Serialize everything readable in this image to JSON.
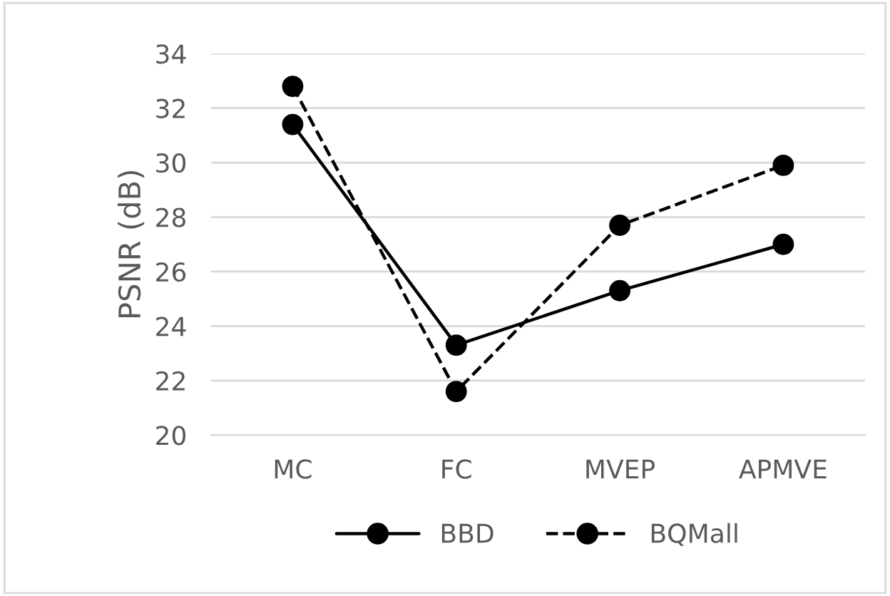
{
  "chart_data": {
    "type": "line",
    "ylabel": "PSNR (dB)",
    "categories": [
      "MC",
      "FC",
      "MVEP",
      "APMVE"
    ],
    "series": [
      {
        "name": "BBD",
        "color": "#000000",
        "values": [
          31.4,
          23.3,
          25.3,
          27.0
        ],
        "line_style": "solid"
      },
      {
        "name": "BQMall",
        "color": "#000000",
        "values": [
          32.8,
          21.6,
          27.7,
          29.9
        ],
        "line_style": "dashed"
      }
    ],
    "ylim": [
      20,
      34
    ],
    "yticks": [
      20,
      22,
      24,
      26,
      28,
      30,
      32,
      34
    ],
    "grid": "y",
    "legend": "bottom",
    "marker": "circle"
  }
}
